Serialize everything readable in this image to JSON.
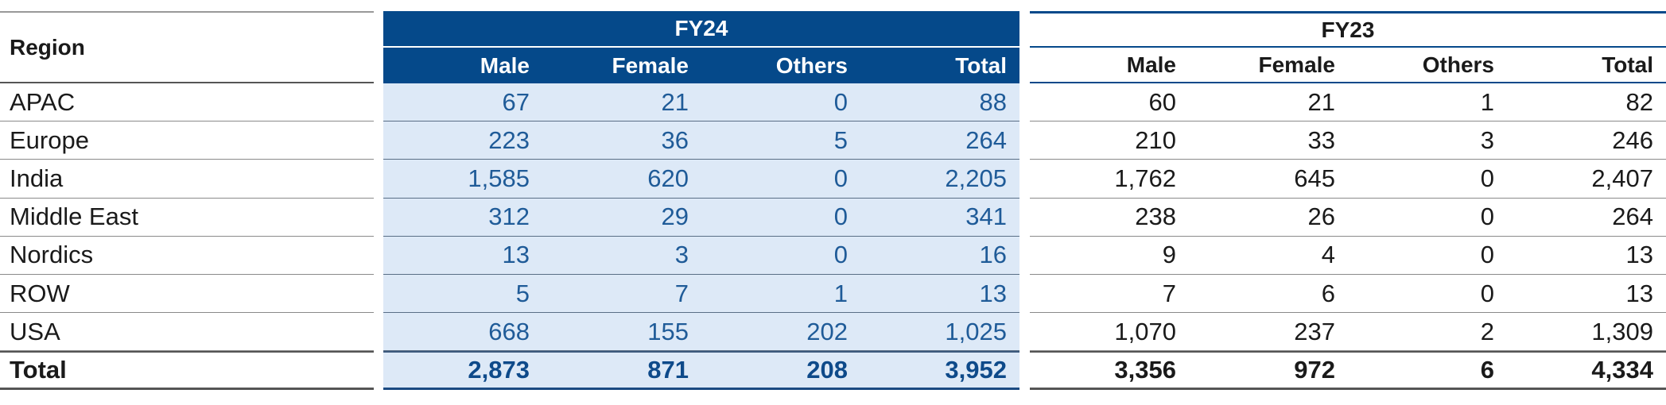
{
  "header": {
    "region_label": "Region",
    "fy24_label": "FY24",
    "fy23_label": "FY23",
    "cols": [
      "Male",
      "Female",
      "Others",
      "Total"
    ]
  },
  "rows": [
    {
      "region": "APAC",
      "fy24": [
        "67",
        "21",
        "0",
        "88"
      ],
      "fy23": [
        "60",
        "21",
        "1",
        "82"
      ]
    },
    {
      "region": "Europe",
      "fy24": [
        "223",
        "36",
        "5",
        "264"
      ],
      "fy23": [
        "210",
        "33",
        "3",
        "246"
      ]
    },
    {
      "region": "India",
      "fy24": [
        "1,585",
        "620",
        "0",
        "2,205"
      ],
      "fy23": [
        "1,762",
        "645",
        "0",
        "2,407"
      ]
    },
    {
      "region": "Middle East",
      "fy24": [
        "312",
        "29",
        "0",
        "341"
      ],
      "fy23": [
        "238",
        "26",
        "0",
        "264"
      ]
    },
    {
      "region": "Nordics",
      "fy24": [
        "13",
        "3",
        "0",
        "16"
      ],
      "fy23": [
        "9",
        "4",
        "0",
        "13"
      ]
    },
    {
      "region": "ROW",
      "fy24": [
        "5",
        "7",
        "1",
        "13"
      ],
      "fy23": [
        "7",
        "6",
        "0",
        "13"
      ]
    },
    {
      "region": "USA",
      "fy24": [
        "668",
        "155",
        "202",
        "1,025"
      ],
      "fy23": [
        "1,070",
        "237",
        "2",
        "1,309"
      ]
    }
  ],
  "total": {
    "region": "Total",
    "fy24": [
      "2,873",
      "871",
      "208",
      "3,952"
    ],
    "fy23": [
      "3,356",
      "972",
      "6",
      "4,334"
    ]
  },
  "colors": {
    "fy24_header_bg": "#05498a",
    "fy24_body_bg": "#dde9f7",
    "fy24_text": "#1f5b98"
  }
}
